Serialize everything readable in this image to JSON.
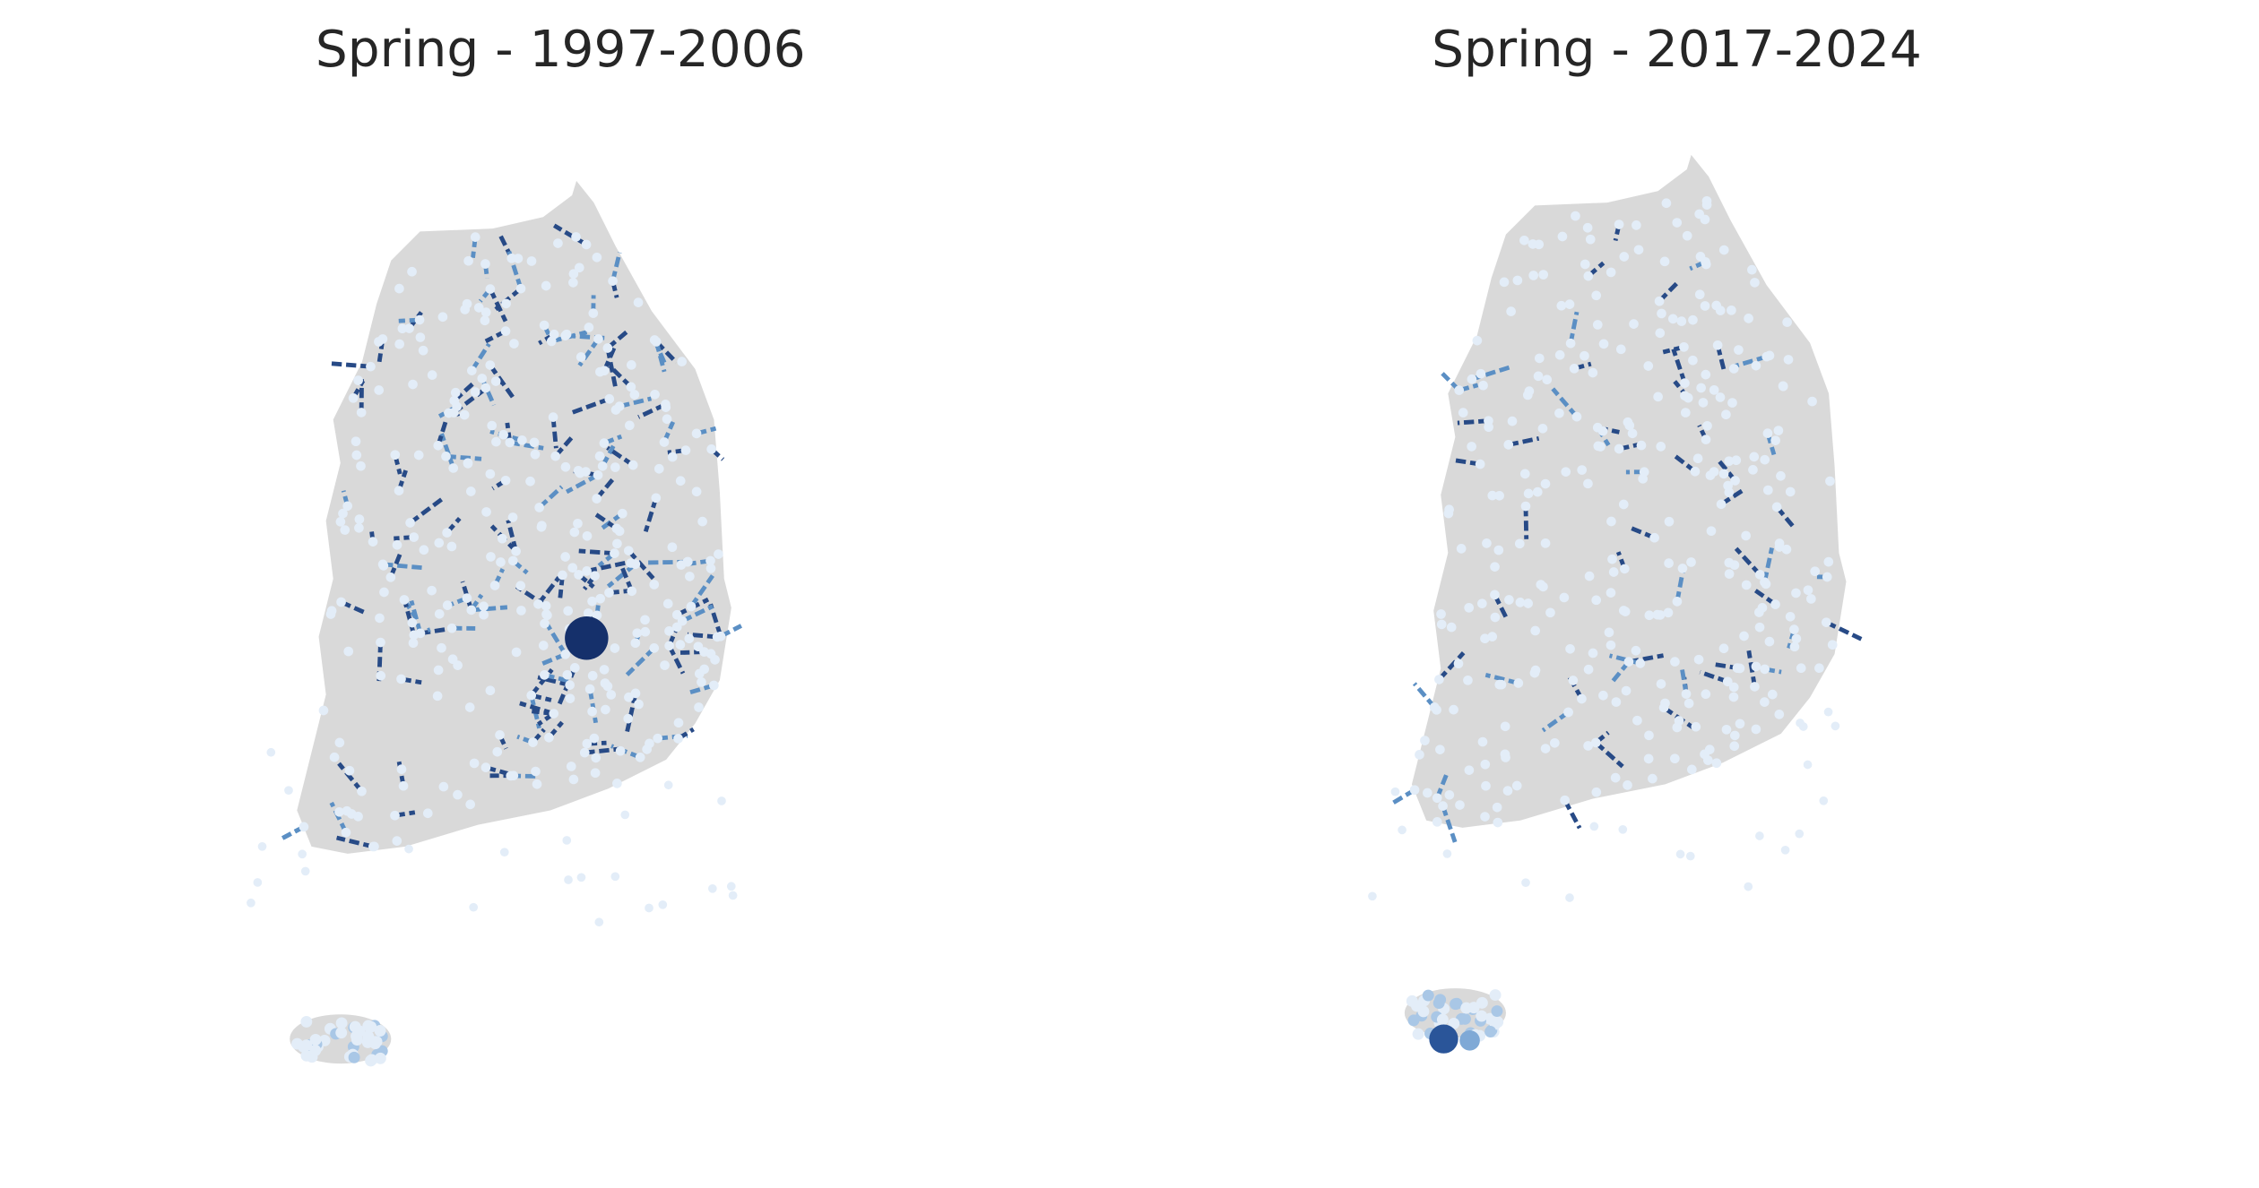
{
  "panels": [
    {
      "title": "Spring - 1997-2006"
    },
    {
      "title": "Spring - 2017-2024"
    }
  ]
}
